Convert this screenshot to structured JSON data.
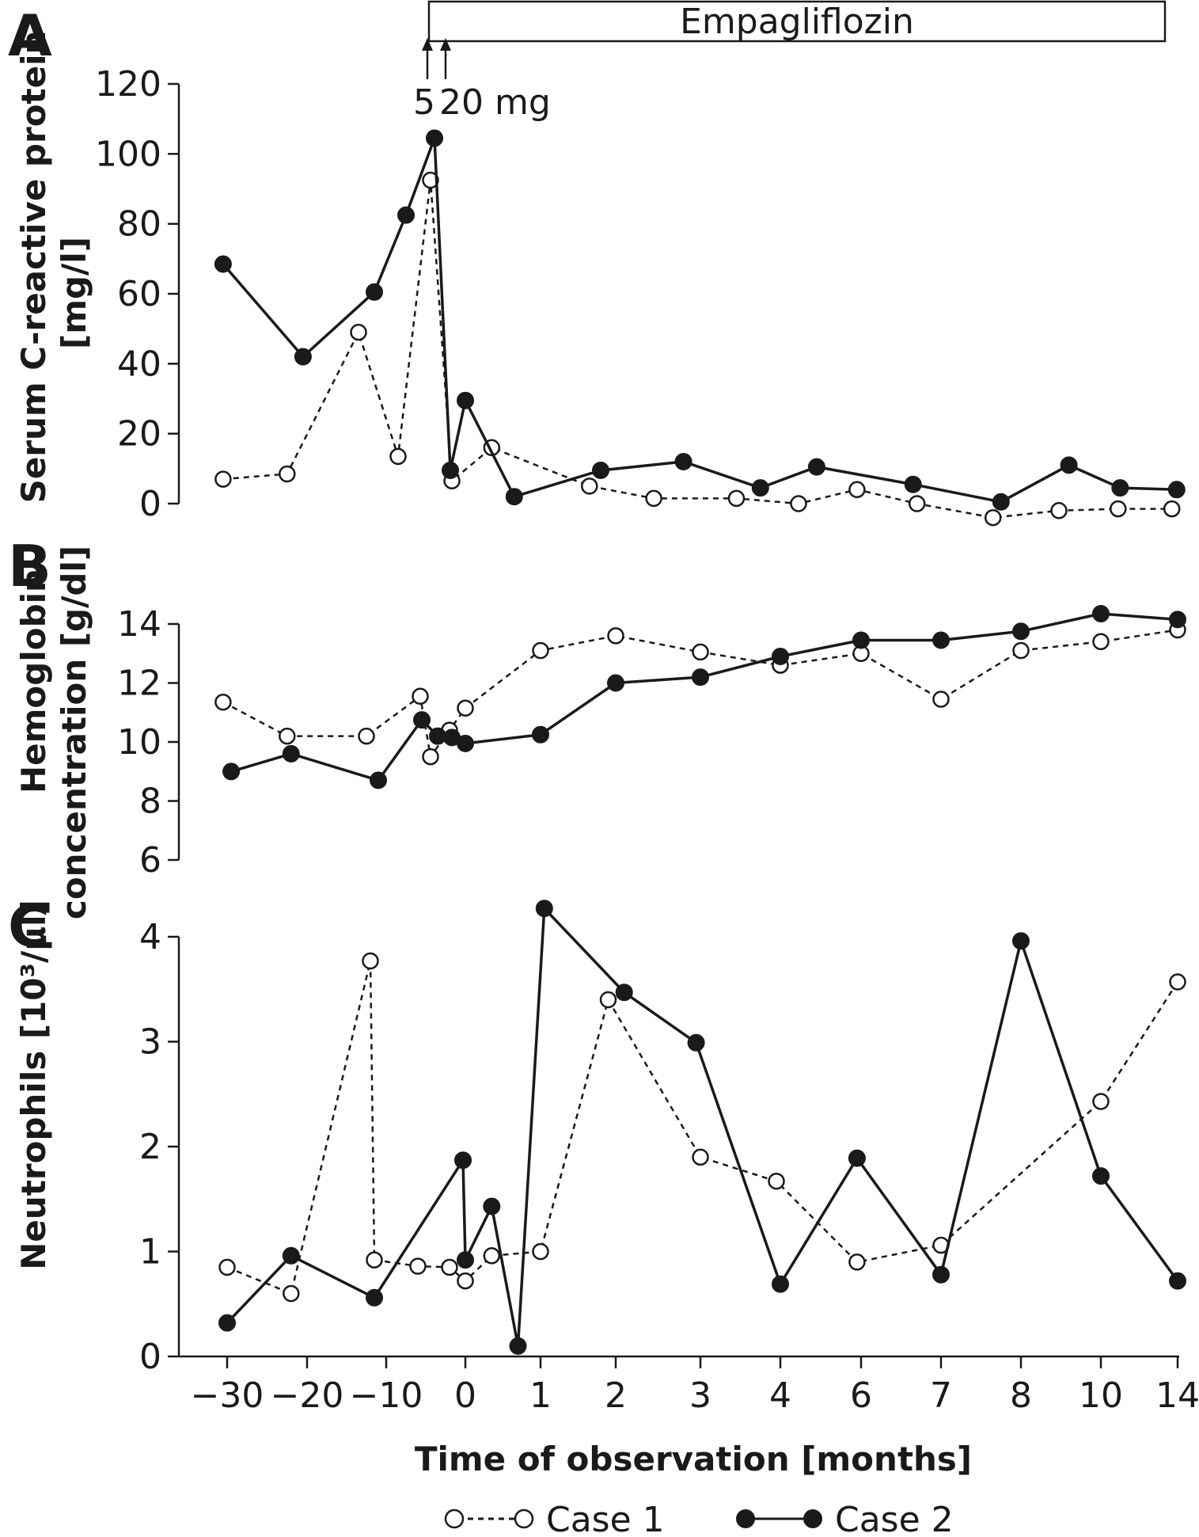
{
  "figure": {
    "xlabel": "Time of observation [months]",
    "x_ticks": [
      "−30",
      "−20",
      "−10",
      "0",
      "1",
      "2",
      "3",
      "4",
      "6",
      "7",
      "8",
      "10",
      "14"
    ],
    "treatment_label": "Empagliflozin",
    "dose_first": "5",
    "dose_second": "20 mg",
    "legend": [
      {
        "name": "Case 1",
        "marker": "open-circle",
        "line": "dashed"
      },
      {
        "name": "Case 2",
        "marker": "filled-circle",
        "line": "solid"
      }
    ],
    "colors": {
      "line": "#1a1a1a",
      "open_fill": "#ffffff",
      "filled": "#1a1a1a"
    }
  },
  "chart_data": [
    {
      "type": "line",
      "panel": "A",
      "ylabel_line1": "Serum C-reactive protein",
      "ylabel_line2": "[mg/l]",
      "ylim": [
        0,
        120
      ],
      "y_ticks": [
        "0",
        "20",
        "40",
        "60",
        "80",
        "100",
        "120"
      ],
      "series": [
        {
          "name": "Case 1",
          "x": [
            -30.5,
            -22.5,
            -13.5,
            -8.5,
            -4.4,
            -1.7,
            0.35,
            1.65,
            2.45,
            3.45,
            4.45,
            5.9,
            6.7,
            7.65,
            8.95,
            10.9,
            13.7
          ],
          "y": [
            7,
            8.5,
            49,
            13.5,
            92.5,
            6.5,
            16,
            5,
            1.5,
            1.5,
            0,
            4,
            0,
            -4,
            -2,
            -1.5,
            -1.5
          ]
        },
        {
          "name": "Case 2",
          "x": [
            -30.5,
            -20.5,
            -11.5,
            -7.5,
            -3.9,
            -1.9,
            0.0,
            0.65,
            1.8,
            2.8,
            3.75,
            4.9,
            6.65,
            7.75,
            9.2,
            11.0,
            13.95
          ],
          "y": [
            68.5,
            42,
            60.5,
            82.5,
            104.5,
            9.5,
            29.5,
            2,
            9.5,
            12,
            4.5,
            10.5,
            5.5,
            0.5,
            11,
            4.5,
            4
          ]
        }
      ]
    },
    {
      "type": "line",
      "panel": "B",
      "ylabel_line1": "Hemoglobin",
      "ylabel_line2": "concentration [g/dl]",
      "ylim": [
        6,
        14
      ],
      "y_ticks": [
        "6",
        "8",
        "10",
        "12",
        "14"
      ],
      "series": [
        {
          "name": "Case 1",
          "x": [
            -30.5,
            -22.5,
            -12.5,
            -5.7,
            -4.4,
            -2.0,
            0.0,
            1.0,
            2.0,
            3.0,
            4.0,
            6.0,
            7.0,
            8.0,
            10.0,
            14.0
          ],
          "y": [
            11.35,
            10.2,
            10.2,
            11.55,
            9.5,
            10.4,
            11.15,
            13.1,
            13.6,
            13.05,
            12.6,
            13.0,
            11.45,
            13.1,
            13.4,
            13.8
          ]
        },
        {
          "name": "Case 2",
          "x": [
            -29.5,
            -22.0,
            -11.0,
            -5.5,
            -3.5,
            -1.7,
            0.0,
            1.0,
            2.0,
            3.0,
            4.0,
            6.0,
            7.0,
            8.0,
            10.0,
            14.0
          ],
          "y": [
            9.0,
            9.6,
            8.7,
            10.75,
            10.2,
            10.15,
            9.95,
            10.25,
            12.0,
            12.2,
            12.9,
            13.45,
            13.45,
            13.75,
            14.35,
            14.15
          ]
        }
      ]
    },
    {
      "type": "line",
      "panel": "C",
      "ylabel_line1": "Neutrophils [10³/µl]",
      "ylim": [
        0,
        4
      ],
      "y_ticks": [
        "0",
        "1",
        "2",
        "3",
        "4"
      ],
      "series": [
        {
          "name": "Case 1",
          "x": [
            -30,
            -22,
            -12,
            -11.5,
            -6,
            -2,
            0,
            0.35,
            1.0,
            1.9,
            3.0,
            3.95,
            5.9,
            7.0,
            10.0,
            14.0
          ],
          "y": [
            0.85,
            0.6,
            3.77,
            0.92,
            0.86,
            0.85,
            0.72,
            0.96,
            1.0,
            3.4,
            1.9,
            1.67,
            0.9,
            1.06,
            2.43,
            3.57
          ]
        },
        {
          "name": "Case 2",
          "x": [
            -30,
            -22,
            -11.5,
            -0.3,
            0.0,
            0.35,
            0.7,
            1.05,
            2.1,
            2.95,
            4.0,
            5.9,
            7.0,
            8.0,
            10.0,
            14.0
          ],
          "y": [
            0.32,
            0.96,
            0.56,
            1.87,
            0.92,
            1.43,
            0.1,
            4.27,
            3.47,
            2.99,
            0.69,
            1.89,
            0.78,
            3.96,
            1.72,
            0.72
          ]
        }
      ]
    }
  ]
}
